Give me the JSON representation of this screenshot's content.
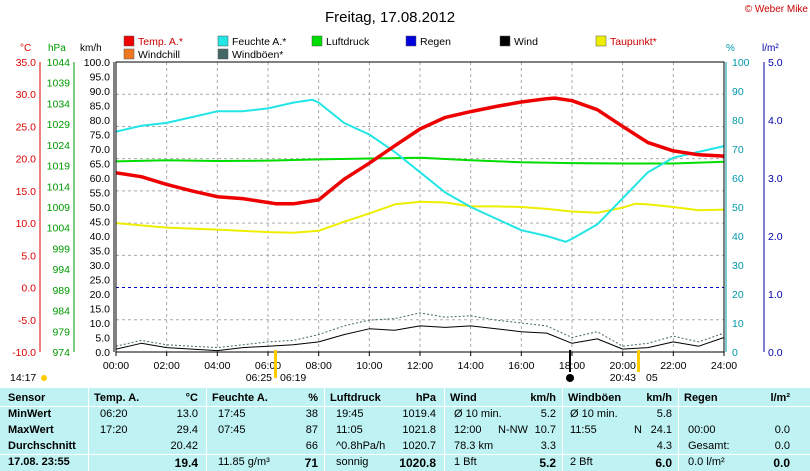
{
  "title": "Freitag, 17.08.2012",
  "copyright": "© Weber Mike",
  "legend": [
    {
      "label": "Temp. A.*",
      "color": "#ee0000"
    },
    {
      "label": "Feuchte A.*",
      "color": "#22e5e5"
    },
    {
      "label": "Luftdruck",
      "color": "#00dd00"
    },
    {
      "label": "Regen",
      "color": "#0000dd"
    },
    {
      "label": "Wind",
      "color": "#000000"
    },
    {
      "label": "Taupunkt*",
      "color": "#eeee00"
    },
    {
      "label": "Windchill",
      "color": "#ee7722"
    },
    {
      "label": "Windböen*",
      "color": "#446666"
    }
  ],
  "axis_units": {
    "temp": "°C",
    "pressure": "hPa",
    "wind": "km/h",
    "humidity": "%",
    "rain": "l/m²"
  },
  "chart_data": {
    "type": "line",
    "title": "Freitag, 17.08.2012",
    "x_ticks": [
      "00:00",
      "02:00",
      "04:00",
      "06:00",
      "08:00",
      "10:00",
      "12:00",
      "14:00",
      "16:00",
      "18:00",
      "20:00",
      "22:00",
      "24:00"
    ],
    "y_axes": {
      "temp_c": {
        "ticks": [
          "35.0",
          "30.0",
          "25.0",
          "20.0",
          "15.0",
          "10.0",
          "5.0",
          "0.0",
          "-5.0",
          "-10.0"
        ],
        "range": [
          -10,
          35
        ]
      },
      "pressure_hpa": {
        "ticks": [
          "1044",
          "1039",
          "1034",
          "1029",
          "1024",
          "1019",
          "1014",
          "1009",
          "1004",
          "999",
          "994",
          "989",
          "984",
          "979",
          "974"
        ],
        "range": [
          974,
          1044
        ]
      },
      "wind_kmh": {
        "ticks": [
          "100.0",
          "95.0",
          "90.0",
          "85.0",
          "80.0",
          "75.0",
          "70.0",
          "65.0",
          "60.0",
          "55.0",
          "50.0",
          "45.0",
          "40.0",
          "35.0",
          "30.0",
          "25.0",
          "20.0",
          "15.0",
          "10.0",
          "5.0",
          "0.0"
        ],
        "range": [
          0,
          100
        ]
      },
      "humidity_pct": {
        "ticks": [
          "100",
          "90",
          "80",
          "70",
          "60",
          "50",
          "40",
          "30",
          "20",
          "10",
          "0"
        ],
        "range": [
          0,
          100
        ]
      },
      "rain_lm2": {
        "ticks": [
          "5.0",
          "4.0",
          "3.0",
          "2.0",
          "1.0",
          "0.0"
        ],
        "range": [
          0,
          5
        ]
      }
    },
    "series": [
      {
        "name": "Temp. A.*",
        "axis": "temp_c",
        "x": [
          0,
          1,
          2,
          3,
          4,
          5,
          6,
          6.33,
          7,
          8,
          9,
          10,
          11,
          12,
          13,
          14,
          15,
          16,
          17,
          17.33,
          18,
          19,
          20,
          21,
          22,
          23,
          24
        ],
        "y": [
          17.8,
          17.2,
          16.0,
          15.0,
          14.1,
          13.8,
          13.2,
          13.0,
          13.0,
          13.6,
          16.8,
          19.3,
          22.0,
          24.6,
          26.4,
          27.3,
          28.1,
          28.8,
          29.3,
          29.4,
          29.0,
          27.6,
          25.0,
          22.5,
          21.2,
          20.6,
          20.4
        ]
      },
      {
        "name": "Feuchte A.*",
        "axis": "humidity_pct",
        "x": [
          0,
          1,
          2,
          3,
          4,
          5,
          6,
          7,
          7.75,
          8,
          9,
          10,
          11,
          12,
          13,
          14,
          15,
          16,
          17,
          17.75,
          18,
          19,
          20,
          21,
          22,
          23,
          24
        ],
        "y": [
          76,
          78,
          79,
          81,
          83,
          83,
          84,
          86,
          87,
          86,
          79,
          75,
          69,
          62,
          55,
          50,
          46,
          42,
          40,
          38,
          39,
          44,
          53,
          62,
          67,
          69,
          71
        ],
        "extremes": {
          "min": 38,
          "max": 87
        }
      },
      {
        "name": "Luftdruck",
        "axis": "pressure_hpa",
        "x": [
          0,
          2,
          4,
          6,
          8,
          10,
          12,
          14,
          16,
          18,
          20,
          22,
          24
        ],
        "y": [
          1020.0,
          1020.3,
          1020.1,
          1020.2,
          1020.5,
          1020.7,
          1020.9,
          1020.3,
          1019.8,
          1019.6,
          1019.5,
          1019.5,
          1019.9
        ]
      },
      {
        "name": "Taupunkt*",
        "axis": "temp_c",
        "x": [
          0,
          2,
          4,
          6,
          7,
          8,
          9,
          10,
          11,
          12,
          13,
          14,
          15,
          16,
          17,
          18,
          19,
          20,
          20.5,
          21,
          22,
          23,
          24
        ],
        "y": [
          10.0,
          9.3,
          9.0,
          8.6,
          8.5,
          8.8,
          10.2,
          11.5,
          12.9,
          13.3,
          13.2,
          12.6,
          12.6,
          12.5,
          12.2,
          11.8,
          11.6,
          12.4,
          13.0,
          12.9,
          12.5,
          12.0,
          12.1
        ]
      },
      {
        "name": "Wind",
        "axis": "wind_kmh",
        "x": [
          0,
          1,
          2,
          3,
          4,
          5,
          6,
          7,
          8,
          9,
          10,
          11,
          12,
          13,
          14,
          15,
          16,
          17,
          18,
          19,
          20,
          21,
          22,
          23,
          24
        ],
        "y": [
          1.0,
          3.0,
          1.5,
          1.0,
          0.5,
          1.5,
          2.0,
          2.5,
          3.5,
          6.0,
          8.0,
          7.5,
          9.0,
          8.5,
          9.0,
          8.0,
          7.0,
          6.5,
          3.0,
          4.5,
          1.0,
          1.5,
          3.5,
          2.0,
          5.0
        ]
      },
      {
        "name": "Windböen*",
        "axis": "wind_kmh",
        "x": [
          0,
          1,
          2,
          3,
          4,
          5,
          6,
          7,
          8,
          9,
          10,
          11,
          12,
          13,
          14,
          15,
          16,
          17,
          18,
          19,
          20,
          21,
          22,
          23,
          24
        ],
        "y": [
          2.0,
          4.0,
          2.5,
          2.0,
          1.5,
          2.5,
          3.5,
          4.0,
          6.0,
          9.0,
          11.0,
          11.5,
          13.5,
          12.0,
          12.5,
          11.0,
          10.0,
          9.0,
          5.0,
          7.0,
          2.0,
          3.0,
          5.5,
          3.5,
          6.5
        ]
      }
    ],
    "grid": true,
    "reference_lines": [
      {
        "axis": "temp_c",
        "y": 0,
        "style": "dashed",
        "color": "#0000cc"
      }
    ],
    "annotations": {
      "bottom_left": "14:17",
      "sunrise": "06:25",
      "sunrise_2": "06:19",
      "sunset": "20:43",
      "sunset_2": "05"
    }
  },
  "table": {
    "headers": {
      "sensor": "Sensor",
      "temp": "Temp. A.",
      "temp_unit": "°C",
      "hum": "Feuchte A.",
      "hum_unit": "%",
      "press": "Luftdruck",
      "press_unit": "hPa",
      "wind": "Wind",
      "wind_unit": "km/h",
      "gust": "Windböen",
      "gust_unit": "km/h",
      "rain": "Regen",
      "rain_unit": "l/m²"
    },
    "rows": [
      {
        "label": "MinWert",
        "temp_time": "06:20",
        "temp_val": "13.0",
        "hum_time": "17:45",
        "hum_val": "38",
        "press_time": "19:45",
        "press_val": "1019.4",
        "wind_desc": "Ø 10 min.",
        "wind_val": "5.2",
        "gust_desc": "Ø 10 min.",
        "gust_val": "5.8",
        "rain_desc": "",
        "rain_val": ""
      },
      {
        "label": "MaxWert",
        "temp_time": "17:20",
        "temp_val": "29.4",
        "hum_time": "07:45",
        "hum_val": "87",
        "press_time": "11:05",
        "press_val": "1021.8",
        "wind_desc": "12:00",
        "wind_dir": "N-NW",
        "wind_val": "10.7",
        "gust_desc": "11:55",
        "gust_dir": "N",
        "gust_val": "24.1",
        "rain_desc": "00:00",
        "rain_val": "0.0"
      },
      {
        "label": "Durchschnitt",
        "temp_time": "",
        "temp_val": "20.42",
        "hum_time": "",
        "hum_val": "66",
        "press_time": "^0.8hPa/h",
        "press_val": "1020.7",
        "wind_desc": "78.3 km",
        "wind_val": "3.3",
        "gust_desc": "",
        "gust_val": "4.3",
        "rain_desc": "Gesamt:",
        "rain_val": "0.0"
      },
      {
        "label": "17.08. 23:55",
        "temp_time": "",
        "temp_val": "19.4",
        "hum_time": "11.85 g/m³",
        "hum_val": "71",
        "press_time": "sonnig",
        "press_val": "1020.8",
        "wind_desc": "1 Bft",
        "wind_val": "5.2",
        "gust_desc": "2 Bft",
        "gust_val": "6.0",
        "rain_desc": "0.0 l/m²",
        "rain_val": "0.0"
      }
    ]
  }
}
